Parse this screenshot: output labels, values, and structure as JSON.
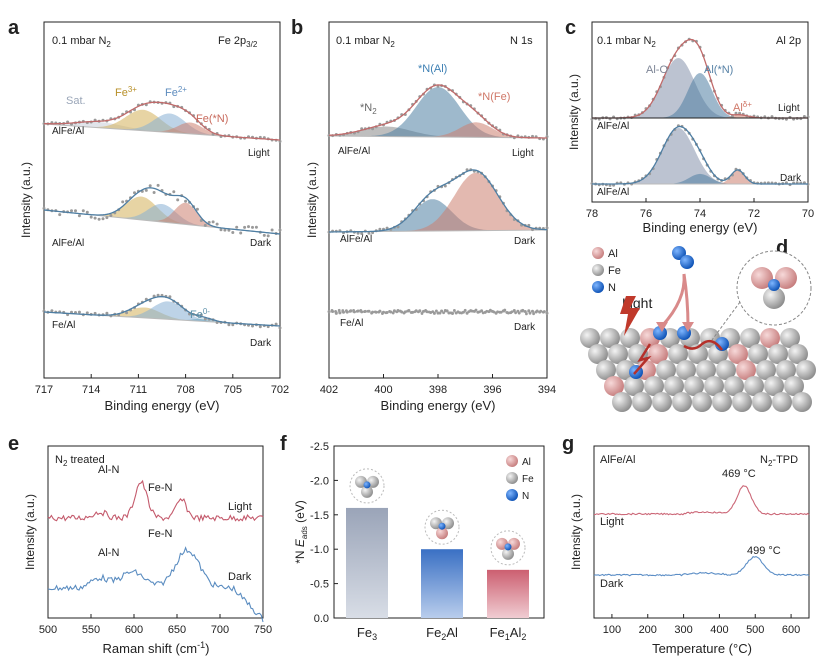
{
  "colors": {
    "fe3": "#d4b05a",
    "fe2": "#86aed3",
    "fen": "#cc8070",
    "bg": "#bbbbbb",
    "fit": "#b56868",
    "n_al": "#4f7fa2",
    "alo": "#8591ab",
    "aln": "#4e7ea3",
    "fe0": "#66a0bc",
    "raman_light": "#c45a6c",
    "raman_dark": "#5a8cc0",
    "bar_fe3": "#aab3c4",
    "bar_fe2al": "#5a88cc",
    "bar_fe1al2": "#d57f8c",
    "tpd_light": "#cc6878",
    "tpd_dark": "#5c8ec6",
    "points": "#9a9a9a"
  },
  "panels": {
    "a": {
      "letter": "a",
      "cond": "0.1 mbar N",
      "cond_sub": "2",
      "core": "Fe 2p",
      "core_sub": "3/2",
      "sample_top": "AlFe/Al",
      "sample_mid": "AlFe/Al",
      "sample_bot": "Fe/Al",
      "state_top": "Light",
      "state_mid": "Dark",
      "state_bot": "Dark",
      "lbl_sat": "Sat.",
      "lbl_fe3": "Fe",
      "lbl_fe3_sup": "3+",
      "lbl_fe2": "Fe",
      "lbl_fe2_sup": "2+",
      "lbl_fen": "Fe(*N)",
      "lbl_fe0": "Fe",
      "lbl_fe0_sup": "0-",
      "xlabel": "Binding energy (eV)",
      "ylabel": "Intensity (a.u.)"
    },
    "b": {
      "letter": "b",
      "cond": "0.1 mbar N",
      "cond_sub": "2",
      "core": "N 1s",
      "sample_top": "AlFe/Al",
      "sample_mid": "AlFe/Al",
      "sample_bot": "Fe/Al",
      "state_top": "Light",
      "state_mid": "Dark",
      "state_bot": "Dark",
      "lbl_n2": "*N",
      "lbl_n2_sub": "2",
      "lbl_nal": "*N(Al)",
      "lbl_nfe": "*N(Fe)",
      "xlabel": "Binding energy (eV)",
      "ylabel": "Intensity (a.u.)"
    },
    "c": {
      "letter": "c",
      "cond": "0.1 mbar N",
      "cond_sub": "2",
      "core": "Al 2p",
      "sample_top": "AlFe/Al",
      "sample_bot": "AlFe/Al",
      "state_top": "Light",
      "state_bot": "Dark",
      "lbl_alo": "Al-O",
      "lbl_aln": "Al(*N)",
      "lbl_ald": "Al",
      "lbl_ald_sup": "δ+",
      "xlabel": "Binding energy (eV)",
      "ylabel": "Intensity (a.u.)"
    },
    "d": {
      "letter": "d",
      "leg_al": "Al",
      "leg_fe": "Fe",
      "leg_n": "N",
      "light": "Light"
    },
    "e": {
      "letter": "e",
      "cond": "N",
      "cond_sub": "2",
      "cond_tail": " treated",
      "lbl_aln_top": "Al-N",
      "lbl_fen_top": "Fe-N",
      "lbl_aln_bot": "Al-N",
      "lbl_fen_bot": "Fe-N",
      "state_top": "Light",
      "state_bot": "Dark",
      "xlabel": "Raman shift (cm",
      "xlabel_sup": "-1",
      "xlabel_tail": ")",
      "ylabel": "Intensity (a.u.)"
    },
    "f": {
      "letter": "f",
      "leg_al": "Al",
      "leg_fe": "Fe",
      "leg_n": "N",
      "ylabel_pre": "*N ",
      "ylabel_e": "E",
      "ylabel_sub": "ads",
      "ylabel_unit": " (eV)"
    },
    "g": {
      "letter": "g",
      "sample": "AlFe/Al",
      "method": "N",
      "method_sub": "2",
      "method_tail": "-TPD",
      "peak_light": "469 °C",
      "peak_dark": "499 °C",
      "state_top": "Light",
      "state_bot": "Dark",
      "xlabel": "Temperature (°C)",
      "ylabel": "Intensity (a.u.)"
    }
  },
  "chart_data": [
    {
      "panel": "a",
      "type": "line",
      "title": "Fe 2p3/2",
      "xlabel": "Binding energy (eV)",
      "ylabel": "Intensity (a.u.)",
      "xlim": [
        717,
        702
      ],
      "xticks": [
        717,
        714,
        711,
        708,
        705,
        702
      ],
      "series": [
        {
          "name": "AlFe/Al Light",
          "components": [
            {
              "name": "Sat.",
              "center": 713.5,
              "sigma": 1.5,
              "amp": 0.15
            },
            {
              "name": "Fe3+",
              "center": 710.7,
              "sigma": 1.1,
              "amp": 0.55
            },
            {
              "name": "Fe2+",
              "center": 709.0,
              "sigma": 1.0,
              "amp": 0.5
            },
            {
              "name": "Fe(*N)",
              "center": 707.7,
              "sigma": 0.8,
              "amp": 0.3
            }
          ]
        },
        {
          "name": "AlFe/Al Dark",
          "components": [
            {
              "name": "Fe3+",
              "center": 710.8,
              "sigma": 1.0,
              "amp": 0.65
            },
            {
              "name": "Fe2+",
              "center": 709.5,
              "sigma": 0.9,
              "amp": 0.5
            },
            {
              "name": "Fe(*N)",
              "center": 708.0,
              "sigma": 0.7,
              "amp": 0.6
            }
          ]
        },
        {
          "name": "Fe/Al Dark",
          "components": [
            {
              "name": "Fe3+",
              "center": 710.6,
              "sigma": 1.0,
              "amp": 0.35
            },
            {
              "name": "Fe2+",
              "center": 709.1,
              "sigma": 1.0,
              "amp": 0.6
            },
            {
              "name": "Fe0-",
              "center": 706.8,
              "sigma": 0.6,
              "amp": 0.1
            }
          ]
        }
      ]
    },
    {
      "panel": "b",
      "type": "line",
      "title": "N 1s",
      "xlabel": "Binding energy (eV)",
      "ylabel": "Intensity (a.u.)",
      "xlim": [
        402,
        394
      ],
      "xticks": [
        402,
        400,
        398,
        396,
        394
      ],
      "series": [
        {
          "name": "AlFe/Al Light",
          "components": [
            {
              "name": "*N2",
              "center": 399.9,
              "sigma": 0.9,
              "amp": 0.2
            },
            {
              "name": "*N(Al)",
              "center": 398.0,
              "sigma": 0.8,
              "amp": 1.0
            },
            {
              "name": "*N(Fe)",
              "center": 396.6,
              "sigma": 0.6,
              "amp": 0.3
            }
          ]
        },
        {
          "name": "AlFe/Al Dark",
          "components": [
            {
              "name": "*N(Al)",
              "center": 398.2,
              "sigma": 0.7,
              "amp": 0.55
            },
            {
              "name": "*N(Fe)",
              "center": 396.6,
              "sigma": 0.8,
              "amp": 1.0
            }
          ]
        },
        {
          "name": "Fe/Al Dark",
          "components": []
        }
      ]
    },
    {
      "panel": "c",
      "type": "line",
      "title": "Al 2p",
      "xlabel": "Binding energy (eV)",
      "ylabel": "Intensity (a.u.)",
      "xlim": [
        78,
        70
      ],
      "xticks": [
        78,
        76,
        74,
        72,
        70
      ],
      "series": [
        {
          "name": "AlFe/Al Light",
          "components": [
            {
              "name": "Al-O",
              "center": 74.8,
              "sigma": 0.6,
              "amp": 1.0
            },
            {
              "name": "Al(*N)",
              "center": 74.0,
              "sigma": 0.45,
              "amp": 0.75
            },
            {
              "name": "Alδ+",
              "center": 72.5,
              "sigma": 0.3,
              "amp": 0.05
            }
          ]
        },
        {
          "name": "AlFe/Al Dark",
          "components": [
            {
              "name": "Al-O",
              "center": 74.8,
              "sigma": 0.6,
              "amp": 1.0
            },
            {
              "name": "Al(*N)",
              "center": 74.0,
              "sigma": 0.4,
              "amp": 0.18
            },
            {
              "name": "Alδ+",
              "center": 72.6,
              "sigma": 0.25,
              "amp": 0.25
            }
          ]
        }
      ]
    },
    {
      "panel": "e",
      "type": "line",
      "xlabel": "Raman shift (cm-1)",
      "ylabel": "Intensity (a.u.)",
      "xlim": [
        500,
        750
      ],
      "xticks": [
        500,
        550,
        600,
        650,
        700,
        750
      ],
      "series": [
        {
          "name": "Light",
          "peaks": [
            {
              "label": "Al-N",
              "x": 608
            },
            {
              "label": "Fe-N",
              "x": 655
            }
          ]
        },
        {
          "name": "Dark",
          "peaks": [
            {
              "label": "Al-N",
              "x": 598
            },
            {
              "label": "Fe-N",
              "x": 662
            }
          ]
        }
      ]
    },
    {
      "panel": "f",
      "type": "bar",
      "ylabel": "*N Eads (eV)",
      "categories": [
        "Fe3",
        "Fe2Al",
        "Fe1Al2"
      ],
      "values": [
        -1.6,
        -1.0,
        -0.7
      ],
      "ylim": [
        0.0,
        -2.5
      ],
      "yticks": [
        0.0,
        -0.5,
        -1.0,
        -1.5,
        -2.0,
        -2.5
      ]
    },
    {
      "panel": "g",
      "type": "line",
      "xlabel": "Temperature (°C)",
      "ylabel": "Intensity (a.u.)",
      "xlim": [
        50,
        650
      ],
      "xticks": [
        100,
        200,
        300,
        400,
        500,
        600
      ],
      "series": [
        {
          "name": "Light",
          "peak_x": 469
        },
        {
          "name": "Dark",
          "peak_x": 499
        }
      ]
    }
  ]
}
